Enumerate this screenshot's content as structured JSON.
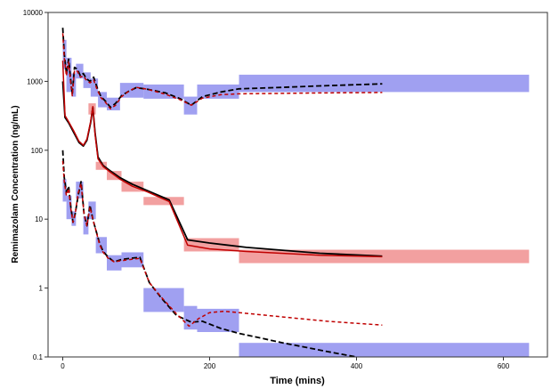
{
  "chart_data": {
    "type": "line",
    "title": "",
    "xlabel": "Time (mins)",
    "ylabel": "Remimazolam Concentration  (ng/mL)",
    "xlim": [
      -20,
      660
    ],
    "ylim": [
      0.1,
      10000
    ],
    "y_scale": "log",
    "x_ticks": [
      0,
      200,
      400,
      600
    ],
    "x_tick_labels": [
      "0",
      "200",
      "400",
      "600"
    ],
    "y_ticks": [
      0.1,
      1,
      10,
      100,
      1000,
      10000
    ],
    "y_tick_labels": [
      "0.1",
      "1",
      "10",
      "100",
      "1000",
      "10000"
    ],
    "grid": false,
    "legend": "none",
    "colors": {
      "observed": "#000000",
      "predicted": "#c00000",
      "interval_outer": "#8f8fef",
      "interval_median": "#f08f8f"
    },
    "intervals": {
      "upper": [
        {
          "t0": 0,
          "t1": 5,
          "lo": 1500,
          "hi": 4000
        },
        {
          "t0": 5,
          "t1": 12,
          "lo": 700,
          "hi": 2200
        },
        {
          "t0": 12,
          "t1": 18,
          "lo": 600,
          "hi": 1300
        },
        {
          "t0": 18,
          "t1": 28,
          "lo": 1100,
          "hi": 1800
        },
        {
          "t0": 28,
          "t1": 38,
          "lo": 800,
          "hi": 1350
        },
        {
          "t0": 38,
          "t1": 48,
          "lo": 600,
          "hi": 1100
        },
        {
          "t0": 48,
          "t1": 60,
          "lo": 420,
          "hi": 700
        },
        {
          "t0": 60,
          "t1": 78,
          "lo": 380,
          "hi": 580
        },
        {
          "t0": 78,
          "t1": 110,
          "lo": 580,
          "hi": 950
        },
        {
          "t0": 110,
          "t1": 165,
          "lo": 560,
          "hi": 900
        },
        {
          "t0": 165,
          "t1": 183,
          "lo": 330,
          "hi": 600
        },
        {
          "t0": 183,
          "t1": 240,
          "lo": 560,
          "hi": 900
        },
        {
          "t0": 240,
          "t1": 635,
          "lo": 700,
          "hi": 1250
        }
      ],
      "median": [
        {
          "t0": 35,
          "t1": 45,
          "lo": 330,
          "hi": 480
        },
        {
          "t0": 45,
          "t1": 60,
          "lo": 52,
          "hi": 68
        },
        {
          "t0": 60,
          "t1": 80,
          "lo": 37,
          "hi": 50
        },
        {
          "t0": 80,
          "t1": 110,
          "lo": 25,
          "hi": 35
        },
        {
          "t0": 110,
          "t1": 165,
          "lo": 16,
          "hi": 21
        },
        {
          "t0": 165,
          "t1": 240,
          "lo": 3.4,
          "hi": 5.3
        },
        {
          "t0": 240,
          "t1": 635,
          "lo": 2.3,
          "hi": 3.6
        }
      ],
      "lower": [
        {
          "t0": 0,
          "t1": 5,
          "lo": 18,
          "hi": 38
        },
        {
          "t0": 5,
          "t1": 12,
          "lo": 10,
          "hi": 22
        },
        {
          "t0": 12,
          "t1": 18,
          "lo": 8,
          "hi": 13
        },
        {
          "t0": 18,
          "t1": 28,
          "lo": 20,
          "hi": 35
        },
        {
          "t0": 28,
          "t1": 35,
          "lo": 6,
          "hi": 11
        },
        {
          "t0": 35,
          "t1": 45,
          "lo": 10,
          "hi": 18
        },
        {
          "t0": 45,
          "t1": 60,
          "lo": 3.2,
          "hi": 5.5
        },
        {
          "t0": 60,
          "t1": 80,
          "lo": 1.8,
          "hi": 3.0
        },
        {
          "t0": 80,
          "t1": 110,
          "lo": 2.0,
          "hi": 3.3
        },
        {
          "t0": 110,
          "t1": 165,
          "lo": 0.45,
          "hi": 1.0
        },
        {
          "t0": 165,
          "t1": 183,
          "lo": 0.25,
          "hi": 0.55
        },
        {
          "t0": 183,
          "t1": 240,
          "lo": 0.23,
          "hi": 0.5
        },
        {
          "t0": 240,
          "t1": 635,
          "lo": 0.1,
          "hi": 0.16
        }
      ]
    },
    "series": [
      {
        "role": "upper",
        "kind": "observed",
        "points": [
          [
            0,
            6000
          ],
          [
            2,
            2500
          ],
          [
            5,
            1300
          ],
          [
            8,
            2100
          ],
          [
            11,
            1000
          ],
          [
            13,
            650
          ],
          [
            16,
            1600
          ],
          [
            20,
            1500
          ],
          [
            24,
            1200
          ],
          [
            28,
            1300
          ],
          [
            32,
            1100
          ],
          [
            37,
            1000
          ],
          [
            42,
            1150
          ],
          [
            47,
            800
          ],
          [
            52,
            600
          ],
          [
            58,
            520
          ],
          [
            65,
            420
          ],
          [
            72,
            480
          ],
          [
            80,
            620
          ],
          [
            90,
            720
          ],
          [
            100,
            810
          ],
          [
            115,
            770
          ],
          [
            140,
            680
          ],
          [
            160,
            560
          ],
          [
            175,
            450
          ],
          [
            190,
            600
          ],
          [
            215,
            700
          ],
          [
            240,
            780
          ],
          [
            300,
            820
          ],
          [
            350,
            860
          ],
          [
            435,
            920
          ]
        ]
      },
      {
        "role": "upper",
        "kind": "predicted",
        "points": [
          [
            0,
            5000
          ],
          [
            2,
            2200
          ],
          [
            5,
            1200
          ],
          [
            8,
            1900
          ],
          [
            11,
            900
          ],
          [
            13,
            620
          ],
          [
            16,
            1450
          ],
          [
            20,
            1400
          ],
          [
            24,
            1150
          ],
          [
            28,
            1200
          ],
          [
            32,
            1050
          ],
          [
            37,
            950
          ],
          [
            42,
            1050
          ],
          [
            47,
            750
          ],
          [
            52,
            580
          ],
          [
            58,
            500
          ],
          [
            65,
            400
          ],
          [
            72,
            450
          ],
          [
            80,
            600
          ],
          [
            90,
            720
          ],
          [
            100,
            820
          ],
          [
            115,
            770
          ],
          [
            140,
            650
          ],
          [
            160,
            540
          ],
          [
            175,
            450
          ],
          [
            190,
            570
          ],
          [
            215,
            640
          ],
          [
            240,
            660
          ],
          [
            300,
            670
          ],
          [
            350,
            680
          ],
          [
            435,
            690
          ]
        ]
      },
      {
        "role": "median",
        "kind": "observed",
        "points": [
          [
            0,
            1000
          ],
          [
            3,
            300
          ],
          [
            8,
            250
          ],
          [
            15,
            180
          ],
          [
            22,
            130
          ],
          [
            28,
            115
          ],
          [
            33,
            140
          ],
          [
            38,
            250
          ],
          [
            41,
            420
          ],
          [
            44,
            180
          ],
          [
            48,
            80
          ],
          [
            55,
            60
          ],
          [
            65,
            50
          ],
          [
            78,
            40
          ],
          [
            95,
            32
          ],
          [
            115,
            26
          ],
          [
            145,
            19
          ],
          [
            170,
            5
          ],
          [
            200,
            4.5
          ],
          [
            250,
            3.9
          ],
          [
            350,
            3.2
          ],
          [
            435,
            2.9
          ]
        ]
      },
      {
        "role": "median",
        "kind": "predicted",
        "points": [
          [
            0,
            2000
          ],
          [
            3,
            320
          ],
          [
            8,
            260
          ],
          [
            15,
            190
          ],
          [
            22,
            135
          ],
          [
            28,
            118
          ],
          [
            33,
            145
          ],
          [
            38,
            260
          ],
          [
            41,
            430
          ],
          [
            44,
            170
          ],
          [
            48,
            75
          ],
          [
            55,
            58
          ],
          [
            65,
            48
          ],
          [
            78,
            38
          ],
          [
            95,
            30
          ],
          [
            115,
            25
          ],
          [
            145,
            18
          ],
          [
            170,
            4.2
          ],
          [
            200,
            3.7
          ],
          [
            250,
            3.4
          ],
          [
            350,
            3.0
          ],
          [
            435,
            2.85
          ]
        ]
      },
      {
        "role": "lower",
        "kind": "observed",
        "points": [
          [
            0,
            100
          ],
          [
            2,
            40
          ],
          [
            5,
            25
          ],
          [
            8,
            30
          ],
          [
            11,
            15
          ],
          [
            14,
            9
          ],
          [
            17,
            12
          ],
          [
            21,
            22
          ],
          [
            25,
            35
          ],
          [
            29,
            12
          ],
          [
            33,
            8
          ],
          [
            37,
            16
          ],
          [
            41,
            10
          ],
          [
            45,
            7
          ],
          [
            50,
            4.5
          ],
          [
            55,
            3.4
          ],
          [
            62,
            2.8
          ],
          [
            70,
            2.4
          ],
          [
            80,
            2.6
          ],
          [
            92,
            2.7
          ],
          [
            105,
            2.8
          ],
          [
            118,
            1.2
          ],
          [
            135,
            0.7
          ],
          [
            155,
            0.4
          ],
          [
            175,
            0.32
          ],
          [
            190,
            0.33
          ],
          [
            215,
            0.26
          ],
          [
            240,
            0.22
          ],
          [
            300,
            0.16
          ],
          [
            360,
            0.12
          ],
          [
            400,
            0.1
          ]
        ]
      },
      {
        "role": "lower",
        "kind": "predicted",
        "points": [
          [
            0,
            70
          ],
          [
            2,
            35
          ],
          [
            5,
            22
          ],
          [
            8,
            28
          ],
          [
            11,
            14
          ],
          [
            14,
            9
          ],
          [
            17,
            12
          ],
          [
            21,
            24
          ],
          [
            25,
            33
          ],
          [
            29,
            12
          ],
          [
            33,
            8
          ],
          [
            37,
            15
          ],
          [
            41,
            10
          ],
          [
            45,
            7
          ],
          [
            50,
            4.3
          ],
          [
            55,
            3.3
          ],
          [
            62,
            2.7
          ],
          [
            70,
            2.4
          ],
          [
            80,
            2.5
          ],
          [
            92,
            2.6
          ],
          [
            105,
            2.7
          ],
          [
            118,
            1.2
          ],
          [
            135,
            0.72
          ],
          [
            155,
            0.42
          ],
          [
            172,
            0.28
          ],
          [
            185,
            0.36
          ],
          [
            200,
            0.44
          ],
          [
            220,
            0.46
          ],
          [
            240,
            0.44
          ],
          [
            300,
            0.38
          ],
          [
            360,
            0.33
          ],
          [
            435,
            0.29
          ]
        ]
      }
    ]
  }
}
